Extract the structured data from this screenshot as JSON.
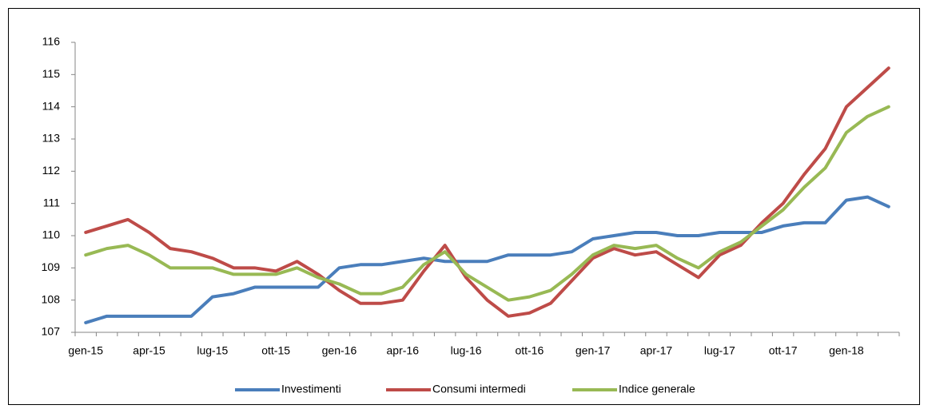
{
  "chart_data": {
    "type": "line",
    "categories": [
      "gen-15",
      null,
      null,
      "apr-15",
      null,
      null,
      "lug-15",
      null,
      null,
      "ott-15",
      null,
      null,
      "gen-16",
      null,
      null,
      "apr-16",
      null,
      null,
      "lug-16",
      null,
      null,
      "ott-16",
      null,
      null,
      "gen-17",
      null,
      null,
      "apr-17",
      null,
      null,
      "lug-17",
      null,
      null,
      "ott-17",
      null,
      null,
      "gen-18",
      null,
      null
    ],
    "series": [
      {
        "name": "Investimenti",
        "color": "#4a7ebb",
        "values": [
          107.3,
          107.5,
          107.5,
          107.5,
          107.5,
          107.5,
          108.1,
          108.2,
          108.4,
          108.4,
          108.4,
          108.4,
          109.0,
          109.1,
          109.1,
          109.2,
          109.3,
          109.2,
          109.2,
          109.2,
          109.4,
          109.4,
          109.4,
          109.5,
          109.9,
          110.0,
          110.1,
          110.1,
          110.0,
          110.0,
          110.1,
          110.1,
          110.1,
          110.3,
          110.4,
          110.4,
          111.1,
          111.2,
          110.9
        ]
      },
      {
        "name": "Consumi intermedi",
        "color": "#be4b48",
        "values": [
          110.1,
          110.3,
          110.5,
          110.1,
          109.6,
          109.5,
          109.3,
          109.0,
          109.0,
          108.9,
          109.2,
          108.8,
          108.3,
          107.9,
          107.9,
          108.0,
          108.9,
          109.7,
          108.7,
          108.0,
          107.5,
          107.6,
          107.9,
          108.6,
          109.3,
          109.6,
          109.4,
          109.5,
          109.1,
          108.7,
          109.4,
          109.7,
          110.4,
          111.0,
          111.9,
          112.7,
          114.0,
          114.6,
          115.2
        ]
      },
      {
        "name": "Indice generale",
        "color": "#98b954",
        "values": [
          109.4,
          109.6,
          109.7,
          109.4,
          109.0,
          109.0,
          109.0,
          108.8,
          108.8,
          108.8,
          109.0,
          108.7,
          108.5,
          108.2,
          108.2,
          108.4,
          109.1,
          109.5,
          108.8,
          108.4,
          108.0,
          108.1,
          108.3,
          108.8,
          109.4,
          109.7,
          109.6,
          109.7,
          109.3,
          109.0,
          109.5,
          109.8,
          110.3,
          110.8,
          111.5,
          112.1,
          113.2,
          113.7,
          114.0
        ]
      }
    ],
    "ylim": [
      107,
      116
    ],
    "yticks": [
      107,
      108,
      109,
      110,
      111,
      112,
      113,
      114,
      115,
      116
    ],
    "grid": false,
    "legend": "bottom"
  }
}
